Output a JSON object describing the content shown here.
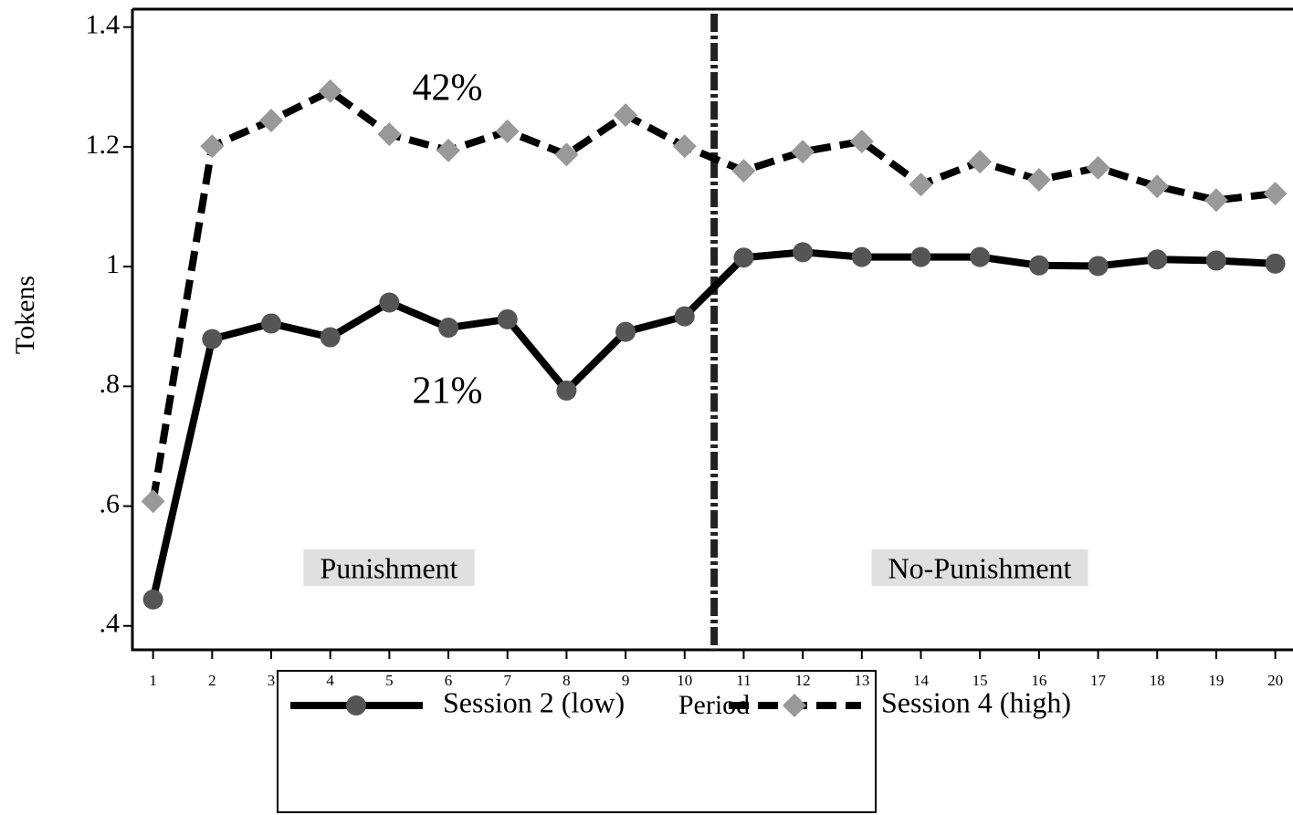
{
  "chart_data": {
    "type": "line",
    "x": [
      1,
      2,
      3,
      4,
      5,
      6,
      7,
      8,
      9,
      10,
      11,
      12,
      13,
      14,
      15,
      16,
      17,
      18,
      19,
      20
    ],
    "series": [
      {
        "name": "Session 2 (low)",
        "color": "#000000",
        "marker_color": "#555555",
        "marker": "circle",
        "dash": false,
        "values": [
          0.444,
          0.879,
          0.905,
          0.882,
          0.94,
          0.898,
          0.912,
          0.793,
          0.891,
          0.917,
          1.015,
          1.024,
          1.016,
          1.016,
          1.016,
          1.002,
          1.001,
          1.012,
          1.01,
          1.005
        ]
      },
      {
        "name": "Session 4 (high)",
        "color": "#000000",
        "marker_color": "#999999",
        "marker": "diamond",
        "dash": true,
        "values": [
          0.608,
          1.201,
          1.244,
          1.293,
          1.221,
          1.194,
          1.226,
          1.187,
          1.253,
          1.201,
          1.16,
          1.192,
          1.209,
          1.137,
          1.175,
          1.145,
          1.165,
          1.134,
          1.111,
          1.122
        ]
      }
    ],
    "xlim": [
      0.65,
      20.3
    ],
    "ylim": [
      0.36,
      1.43
    ],
    "xticks": [
      1,
      2,
      3,
      4,
      5,
      6,
      7,
      8,
      9,
      10,
      11,
      12,
      13,
      14,
      15,
      16,
      17,
      18,
      19,
      20
    ],
    "yticks": [
      {
        "value": 0.4,
        "label": ".4"
      },
      {
        "value": 0.6,
        "label": ".6"
      },
      {
        "value": 0.8,
        "label": ".8"
      },
      1,
      1.2,
      1.4
    ],
    "xlabel": "Period",
    "ylabel": "Tokens",
    "vline": 10.5,
    "annotations": [
      "42%",
      "21%"
    ],
    "regions": [
      "Punishment",
      "No-Punishment"
    ],
    "legend": "bottom"
  }
}
